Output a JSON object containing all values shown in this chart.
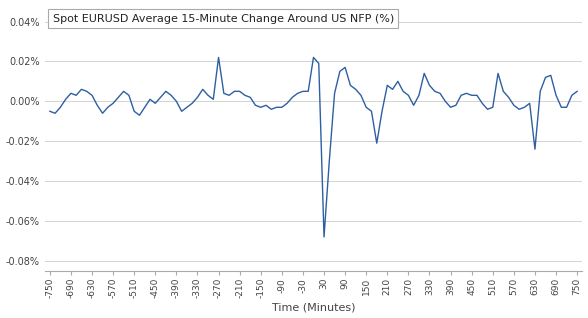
{
  "title": "Spot EURUSD Average 15-Minute Change Around US NFP (%)",
  "xlabel": "Time (Minutes)",
  "line_color": "#2E5FA3",
  "background_color": "#FFFFFF",
  "grid_color": "#CCCCCC",
  "xlim": [
    -765,
    765
  ],
  "ylim": [
    -0.00085,
    0.00048
  ],
  "xticks": [
    -750,
    -690,
    -630,
    -570,
    -510,
    -450,
    -390,
    -330,
    -270,
    -210,
    -150,
    -90,
    -30,
    30,
    90,
    150,
    210,
    270,
    330,
    390,
    450,
    510,
    570,
    630,
    690,
    750
  ],
  "yticks": [
    -0.0008,
    -0.0006,
    -0.0004,
    -0.0002,
    0.0,
    0.0002,
    0.0004
  ],
  "x": [
    -750,
    -735,
    -720,
    -705,
    -690,
    -675,
    -660,
    -645,
    -630,
    -615,
    -600,
    -585,
    -570,
    -555,
    -540,
    -525,
    -510,
    -495,
    -480,
    -465,
    -450,
    -435,
    -420,
    -405,
    -390,
    -375,
    -360,
    -345,
    -330,
    -315,
    -300,
    -285,
    -270,
    -255,
    -240,
    -225,
    -210,
    -195,
    -180,
    -165,
    -150,
    -135,
    -120,
    -105,
    -90,
    -75,
    -60,
    -45,
    -30,
    -15,
    0,
    15,
    30,
    45,
    60,
    75,
    90,
    105,
    120,
    135,
    150,
    165,
    180,
    195,
    210,
    225,
    240,
    255,
    270,
    285,
    300,
    315,
    330,
    345,
    360,
    375,
    390,
    405,
    420,
    435,
    450,
    465,
    480,
    495,
    510,
    525,
    540,
    555,
    570,
    585,
    600,
    615,
    630,
    645,
    660,
    675,
    690,
    705,
    720,
    735,
    750
  ],
  "y": [
    -5e-05,
    -6e-05,
    -3e-05,
    1e-05,
    4e-05,
    3e-05,
    6e-05,
    5e-05,
    3e-05,
    -2e-05,
    -6e-05,
    -3e-05,
    -1e-05,
    2e-05,
    5e-05,
    3e-05,
    -5e-05,
    -7e-05,
    -3e-05,
    1e-05,
    -1e-05,
    2e-05,
    5e-05,
    3e-05,
    0.0,
    -5e-05,
    -3e-05,
    -1e-05,
    2e-05,
    6e-05,
    3e-05,
    1e-05,
    0.00022,
    4e-05,
    3e-05,
    5e-05,
    5e-05,
    3e-05,
    2e-05,
    -2e-05,
    -3e-05,
    -2e-05,
    -4e-05,
    -3e-05,
    -3e-05,
    -1e-05,
    2e-05,
    4e-05,
    5e-05,
    5e-05,
    0.00022,
    0.00019,
    -0.00068,
    -0.0003,
    4e-05,
    0.00015,
    0.00017,
    8e-05,
    6e-05,
    3e-05,
    -3e-05,
    -5e-05,
    -0.00021,
    -5e-05,
    8e-05,
    6e-05,
    0.0001,
    5e-05,
    3e-05,
    -2e-05,
    3e-05,
    0.00014,
    8e-05,
    5e-05,
    4e-05,
    0.0,
    -3e-05,
    -2e-05,
    3e-05,
    4e-05,
    3e-05,
    3e-05,
    -1e-05,
    -4e-05,
    -3e-05,
    0.00014,
    5e-05,
    2e-05,
    -2e-05,
    -4e-05,
    -3e-05,
    -1e-05,
    -0.00024,
    5e-05,
    0.00012,
    0.00013,
    3e-05,
    -3e-05,
    -3e-05,
    3e-05,
    5e-05
  ]
}
